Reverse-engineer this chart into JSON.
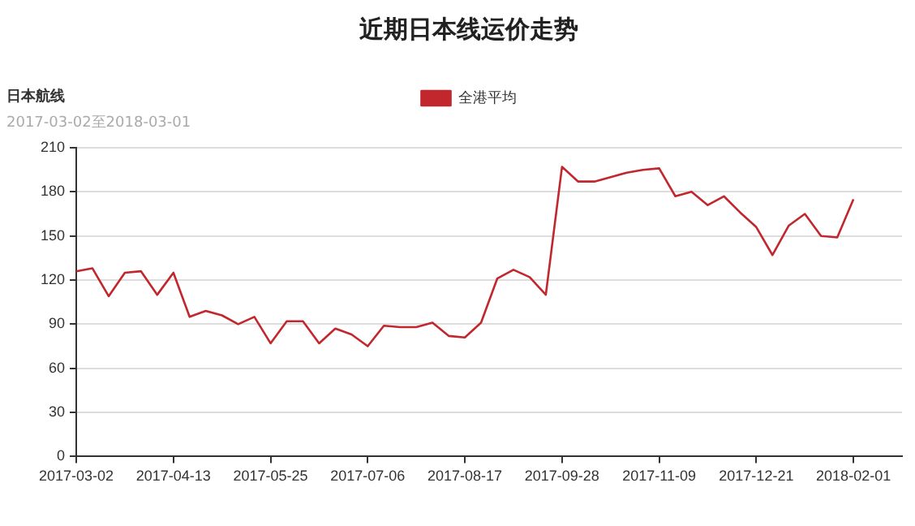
{
  "chart_data": {
    "type": "line",
    "title": "近期日本线运价走势",
    "subtitle": "日本航线",
    "annotations": [
      "2017-03-02至2018-03-01"
    ],
    "categories": [
      "2017-03-02",
      null,
      null,
      null,
      null,
      null,
      "2017-04-13",
      null,
      null,
      null,
      null,
      null,
      "2017-05-25",
      null,
      null,
      null,
      null,
      null,
      "2017-07-06",
      null,
      null,
      null,
      null,
      null,
      "2017-08-17",
      null,
      null,
      null,
      null,
      null,
      "2017-09-28",
      null,
      null,
      null,
      null,
      null,
      "2017-11-09",
      null,
      null,
      null,
      null,
      null,
      "2017-12-21",
      null,
      null,
      null,
      null,
      null,
      "2018-02-01",
      null,
      null,
      null
    ],
    "series": [
      {
        "name": "全港平均",
        "color": "#c1272d",
        "values": [
          126,
          128,
          109,
          125,
          126,
          110,
          125,
          95,
          99,
          96,
          90,
          95,
          77,
          92,
          92,
          77,
          87,
          83,
          75,
          89,
          88,
          88,
          91,
          82,
          81,
          91,
          121,
          127,
          122,
          110,
          197,
          187,
          187,
          190,
          193,
          195,
          196,
          177,
          180,
          171,
          177,
          166,
          156,
          137,
          157,
          165,
          150,
          149,
          175,
          null,
          null,
          null
        ]
      }
    ],
    "ylim": [
      0,
      210
    ],
    "yticks": [
      0,
      30,
      60,
      90,
      120,
      150,
      180,
      210
    ],
    "grid": "y",
    "legend": "top",
    "marker": "none",
    "line_style": "solid"
  }
}
